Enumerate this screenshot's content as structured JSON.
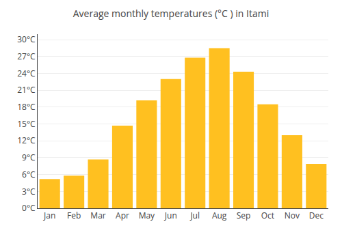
{
  "chart_data": {
    "type": "bar",
    "title": "Average monthly temperatures (°C ) in Itami",
    "categories": [
      "Jan",
      "Feb",
      "Mar",
      "Apr",
      "May",
      "Jun",
      "Jul",
      "Aug",
      "Sep",
      "Oct",
      "Nov",
      "Dec"
    ],
    "values": [
      5.2,
      5.8,
      8.7,
      14.7,
      19.2,
      23.0,
      26.8,
      28.5,
      24.3,
      18.5,
      13.0,
      7.9
    ],
    "color": "#FFC020",
    "ylim": [
      0,
      31
    ],
    "yticks": [
      {
        "value": 0,
        "label": "0°C"
      },
      {
        "value": 3,
        "label": "3°C"
      },
      {
        "value": 6,
        "label": "6°C"
      },
      {
        "value": 9,
        "label": "9°C"
      },
      {
        "value": 12,
        "label": "12°C"
      },
      {
        "value": 15,
        "label": "15°C"
      },
      {
        "value": 18,
        "label": "18°C"
      },
      {
        "value": 21,
        "label": "21°C"
      },
      {
        "value": 24,
        "label": "24°C"
      },
      {
        "value": 27,
        "label": "27°C"
      },
      {
        "value": 30,
        "label": "30°C"
      }
    ],
    "grid": true
  }
}
